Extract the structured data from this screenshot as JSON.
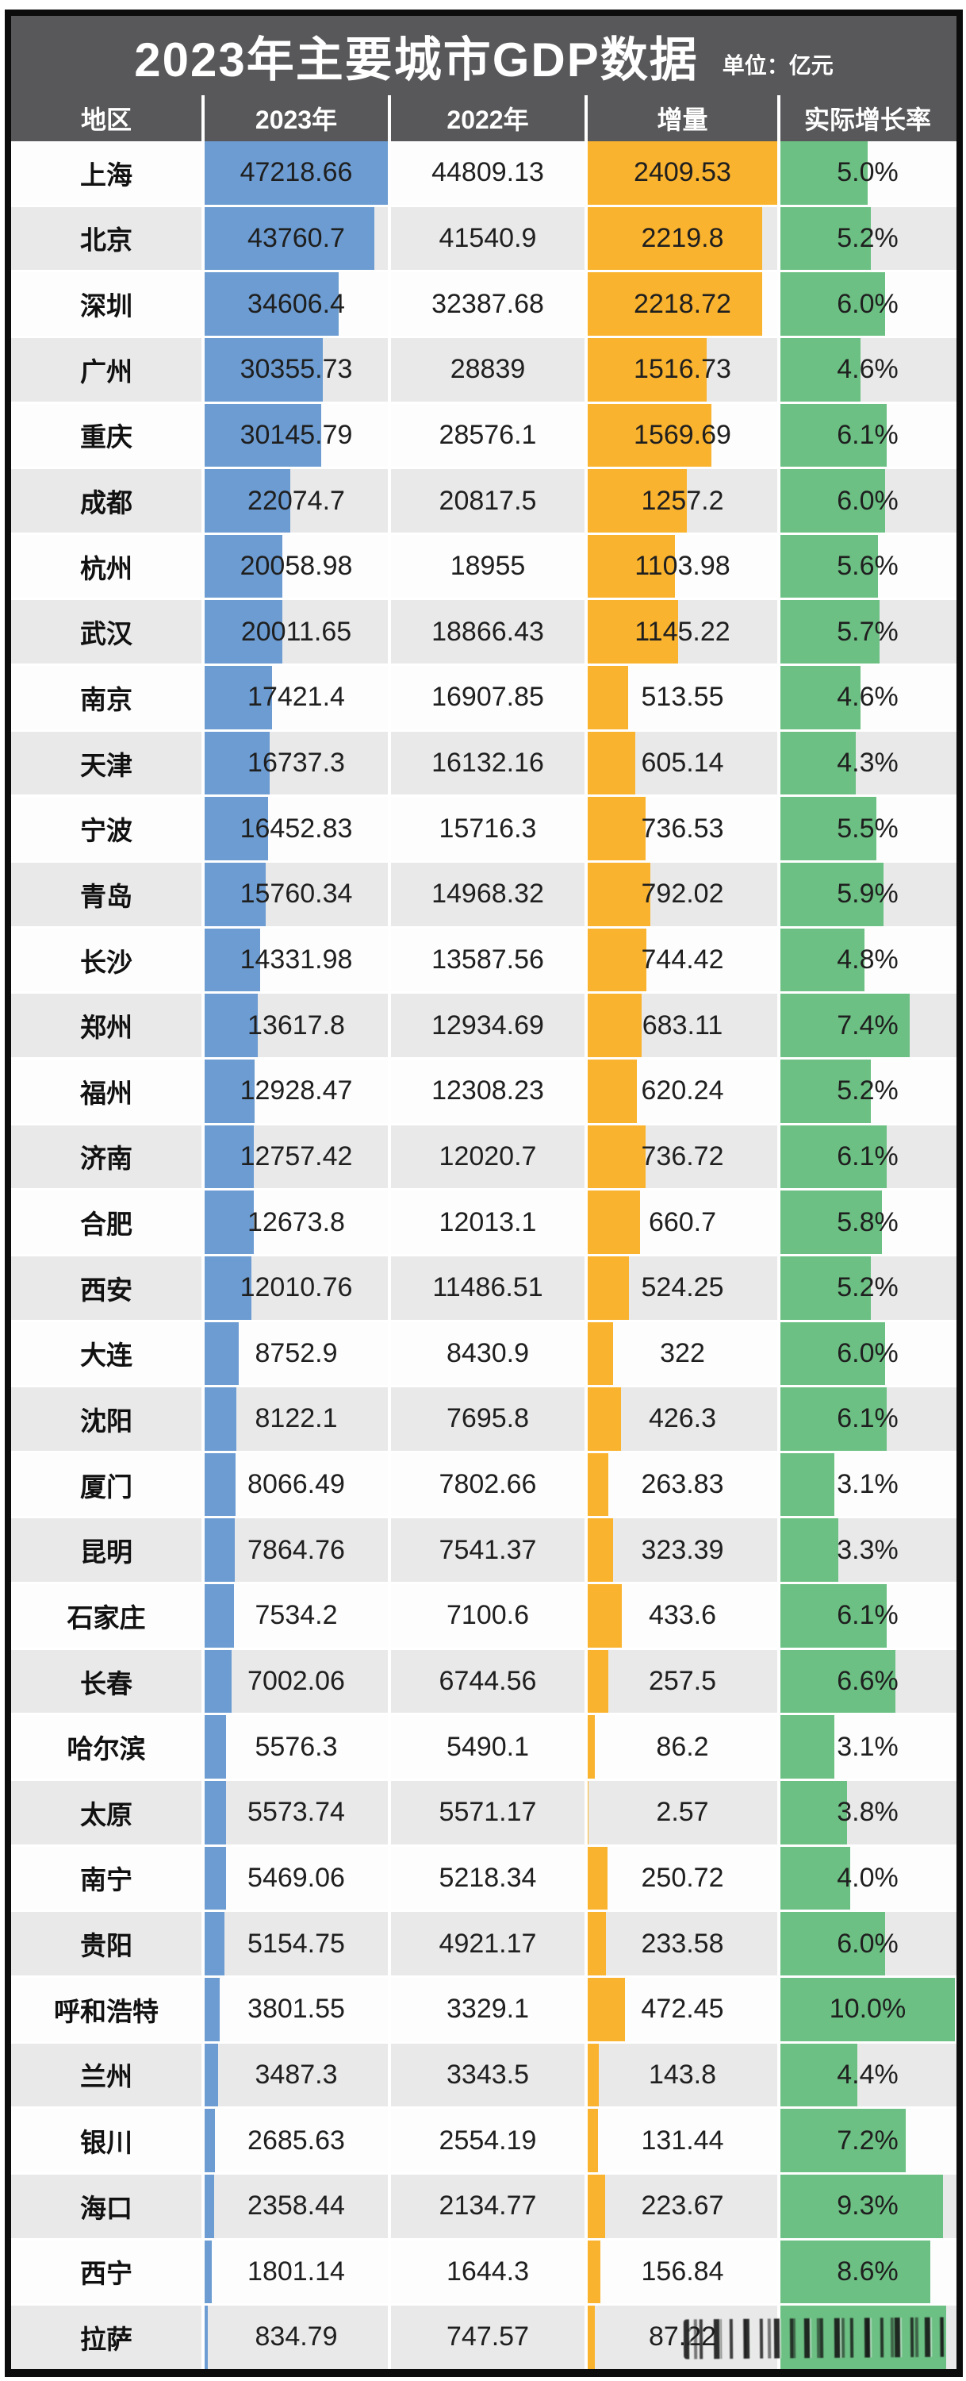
{
  "chart_data": {
    "type": "table",
    "title": "2023年主要城市GDP数据",
    "unit": "单位：亿元",
    "columns": [
      "地区",
      "2023年",
      "2022年",
      "增量",
      "实际增长率"
    ],
    "legend_position": "none",
    "grid": "alternating-row-shading",
    "bar_scales": {
      "gdp_2023_max": 47218.66,
      "delta_max": 2409.53,
      "growth_max_percent": 10.0
    },
    "rows": [
      [
        "上海",
        47218.66,
        44809.13,
        2409.53,
        "5.0%"
      ],
      [
        "北京",
        43760.7,
        41540.9,
        2219.8,
        "5.2%"
      ],
      [
        "深圳",
        34606.4,
        32387.68,
        2218.72,
        "6.0%"
      ],
      [
        "广州",
        30355.73,
        28839,
        1516.73,
        "4.6%"
      ],
      [
        "重庆",
        30145.79,
        28576.1,
        1569.69,
        "6.1%"
      ],
      [
        "成都",
        22074.7,
        20817.5,
        1257.2,
        "6.0%"
      ],
      [
        "杭州",
        20058.98,
        18955,
        1103.98,
        "5.6%"
      ],
      [
        "武汉",
        20011.65,
        18866.43,
        1145.22,
        "5.7%"
      ],
      [
        "南京",
        17421.4,
        16907.85,
        513.55,
        "4.6%"
      ],
      [
        "天津",
        16737.3,
        16132.16,
        605.14,
        "4.3%"
      ],
      [
        "宁波",
        16452.83,
        15716.3,
        736.53,
        "5.5%"
      ],
      [
        "青岛",
        15760.34,
        14968.32,
        792.02,
        "5.9%"
      ],
      [
        "长沙",
        14331.98,
        13587.56,
        744.42,
        "4.8%"
      ],
      [
        "郑州",
        13617.8,
        12934.69,
        683.11,
        "7.4%"
      ],
      [
        "福州",
        12928.47,
        12308.23,
        620.24,
        "5.2%"
      ],
      [
        "济南",
        12757.42,
        12020.7,
        736.72,
        "6.1%"
      ],
      [
        "合肥",
        12673.8,
        12013.1,
        660.7,
        "5.8%"
      ],
      [
        "西安",
        12010.76,
        11486.51,
        524.25,
        "5.2%"
      ],
      [
        "大连",
        8752.9,
        8430.9,
        322,
        "6.0%"
      ],
      [
        "沈阳",
        8122.1,
        7695.8,
        426.3,
        "6.1%"
      ],
      [
        "厦门",
        8066.49,
        7802.66,
        263.83,
        "3.1%"
      ],
      [
        "昆明",
        7864.76,
        7541.37,
        323.39,
        "3.3%"
      ],
      [
        "石家庄",
        7534.2,
        7100.6,
        433.6,
        "6.1%"
      ],
      [
        "长春",
        7002.06,
        6744.56,
        257.5,
        "6.6%"
      ],
      [
        "哈尔滨",
        5576.3,
        5490.1,
        86.2,
        "3.1%"
      ],
      [
        "太原",
        5573.74,
        5571.17,
        2.57,
        "3.8%"
      ],
      [
        "南宁",
        5469.06,
        5218.34,
        250.72,
        "4.0%"
      ],
      [
        "贵阳",
        5154.75,
        4921.17,
        233.58,
        "6.0%"
      ],
      [
        "呼和浩特",
        3801.55,
        3329.1,
        472.45,
        "10.0%"
      ],
      [
        "兰州",
        3487.3,
        3343.5,
        143.8,
        "4.4%"
      ],
      [
        "银川",
        2685.63,
        2554.19,
        131.44,
        "7.2%"
      ],
      [
        "海口",
        2358.44,
        2134.77,
        223.67,
        "9.3%"
      ],
      [
        "西宁",
        1801.14,
        1644.3,
        156.84,
        "8.6%"
      ],
      [
        "拉萨",
        834.79,
        747.57,
        87.22,
        ""
      ]
    ],
    "growth_bar_fraction_overrides": {
      "33": 0.95
    },
    "watermark": {
      "visible": true,
      "legible": false
    }
  },
  "colors": {
    "header_bg": "#58585a",
    "row_bg": "#fdfdfd",
    "row_alt_bg": "#e9e9e9",
    "bar_blue": "#6c9cd2",
    "bar_orange": "#fab32e",
    "bar_green": "#6cc083",
    "frame_border": "#0c0c0c",
    "header_text": "#ffffff",
    "body_text": "#1f1f1f"
  }
}
